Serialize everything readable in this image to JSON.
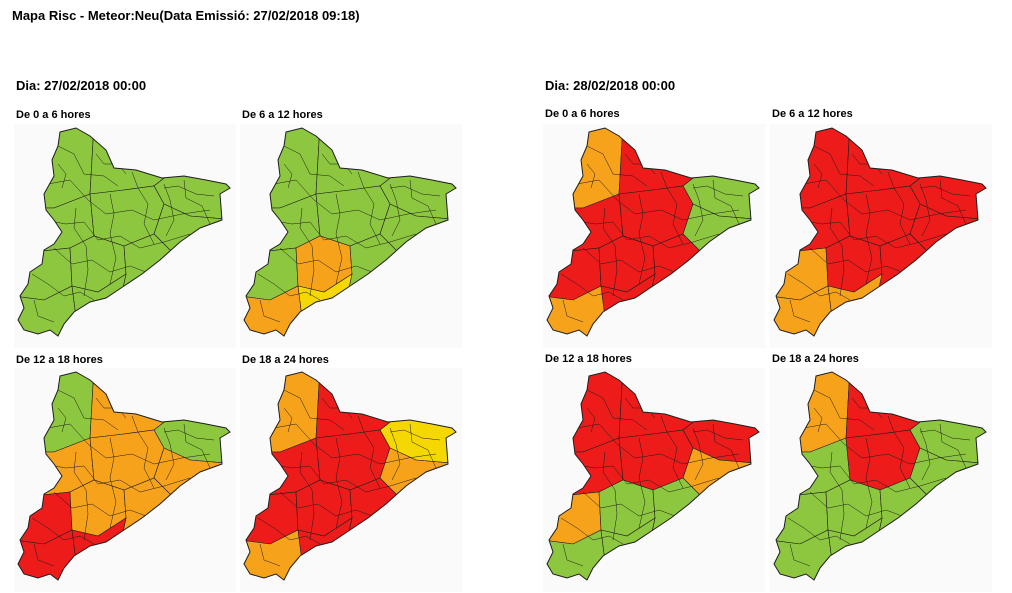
{
  "page": {
    "title": "Mapa Risc - Meteor:Neu(Data Emissió: 27/02/2018 09:18)"
  },
  "colors": {
    "green": "#8dc63f",
    "yellow": "#f5d800",
    "orange": "#f7a21b",
    "red": "#ee1b1b",
    "border": "#1d1d1d",
    "panel_bg": "#fbfafa"
  },
  "days": [
    {
      "title": "Dia: 27/02/2018 00:00",
      "periods": [
        {
          "label": "De 0 a 6 hores",
          "zones": {
            "NW": "green",
            "NC": "green",
            "NE": "green",
            "CW": "green",
            "CC": "green",
            "CE": "green",
            "SW": "green",
            "SC": "green",
            "SE": "green",
            "SSW": "green",
            "SSC": "green"
          }
        },
        {
          "label": "De 6 a 12 hores",
          "zones": {
            "NW": "green",
            "NC": "green",
            "NE": "green",
            "CW": "green",
            "CC": "green",
            "CE": "green",
            "SW": "green",
            "SC": "orange",
            "SE": "green",
            "SSW": "orange",
            "SSC": "yellow"
          }
        },
        {
          "label": "De 12 a 18 hores",
          "zones": {
            "NW": "green",
            "NC": "orange",
            "NE": "green",
            "CW": "orange",
            "CC": "orange",
            "CE": "orange",
            "SW": "red",
            "SC": "orange",
            "SE": "orange",
            "SSW": "red",
            "SSC": "red"
          }
        },
        {
          "label": "De 18 a 24 hores",
          "zones": {
            "NW": "orange",
            "NC": "red",
            "NE": "yellow",
            "CW": "red",
            "CC": "red",
            "CE": "orange",
            "SW": "red",
            "SC": "red",
            "SE": "red",
            "SSW": "orange",
            "SSC": "red"
          }
        }
      ]
    },
    {
      "title": "Dia: 28/02/2018 00:00",
      "periods": [
        {
          "label": "De 0 a 6 hores",
          "zones": {
            "NW": "orange",
            "NC": "red",
            "NE": "green",
            "CW": "red",
            "CC": "red",
            "CE": "green",
            "SW": "red",
            "SC": "red",
            "SE": "red",
            "SSW": "orange",
            "SSC": "red"
          }
        },
        {
          "label": "De 6 a 12 hores",
          "zones": {
            "NW": "red",
            "NC": "red",
            "NE": "red",
            "CW": "red",
            "CC": "red",
            "CE": "red",
            "SW": "orange",
            "SC": "red",
            "SE": "red",
            "SSW": "orange",
            "SSC": "orange"
          }
        },
        {
          "label": "De 12 a 18 hores",
          "zones": {
            "NW": "red",
            "NC": "red",
            "NE": "red",
            "CW": "red",
            "CC": "red",
            "CE": "orange",
            "SW": "orange",
            "SC": "green",
            "SE": "green",
            "SSW": "green",
            "SSC": "green"
          }
        },
        {
          "label": "De 18 a 24 hores",
          "zones": {
            "NW": "orange",
            "NC": "red",
            "NE": "green",
            "CW": "green",
            "CC": "red",
            "CE": "green",
            "SW": "green",
            "SC": "green",
            "SE": "green",
            "SSW": "green",
            "SSC": "green"
          }
        }
      ]
    }
  ]
}
